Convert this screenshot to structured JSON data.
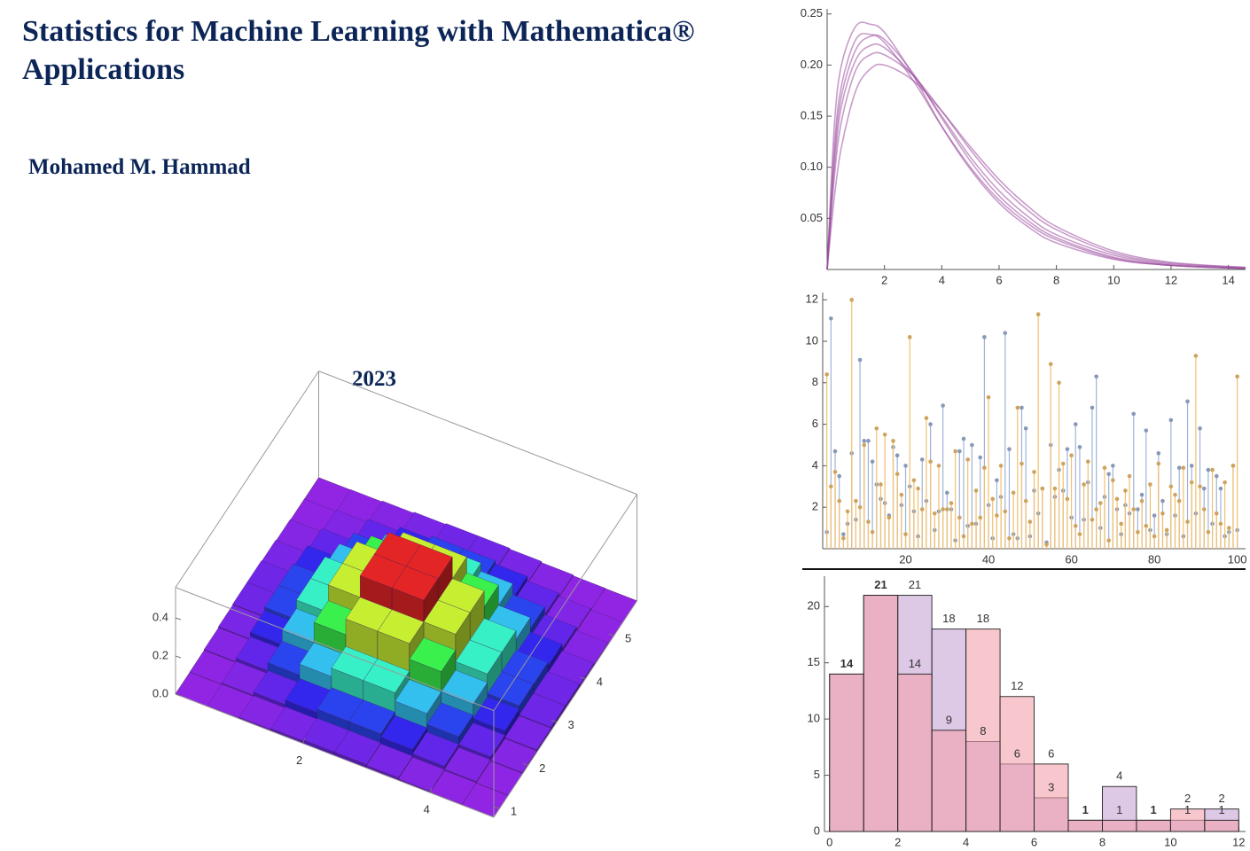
{
  "title": "Statistics for Machine Learning with Mathematica® Applications",
  "author": "Mohamed M. Hammad",
  "year": "2023",
  "chart_data": [
    {
      "type": "bar3d",
      "colormap": "Rainbow",
      "x_edges": [
        0,
        0.5,
        1,
        1.5,
        2,
        2.5,
        3,
        3.5,
        4,
        4.5,
        5
      ],
      "y_edges": [
        0.8,
        1.3,
        1.8,
        2.3,
        2.8,
        3.3,
        3.8,
        4.3,
        4.8,
        5.3,
        5.8
      ],
      "values": [
        [
          0.001,
          0.003,
          0.008,
          0.014,
          0.019,
          0.019,
          0.014,
          0.008,
          0.003,
          0.001
        ],
        [
          0.003,
          0.01,
          0.026,
          0.049,
          0.067,
          0.067,
          0.049,
          0.026,
          0.01,
          0.003
        ],
        [
          0.008,
          0.026,
          0.067,
          0.124,
          0.169,
          0.169,
          0.124,
          0.067,
          0.026,
          0.008
        ],
        [
          0.014,
          0.049,
          0.124,
          0.23,
          0.313,
          0.313,
          0.23,
          0.124,
          0.049,
          0.014
        ],
        [
          0.019,
          0.066,
          0.168,
          0.313,
          0.426,
          0.426,
          0.313,
          0.168,
          0.066,
          0.019
        ],
        [
          0.019,
          0.066,
          0.168,
          0.313,
          0.426,
          0.426,
          0.313,
          0.168,
          0.066,
          0.019
        ],
        [
          0.014,
          0.049,
          0.124,
          0.23,
          0.313,
          0.313,
          0.23,
          0.124,
          0.049,
          0.014
        ],
        [
          0.008,
          0.026,
          0.067,
          0.124,
          0.169,
          0.169,
          0.124,
          0.067,
          0.026,
          0.008
        ],
        [
          0.003,
          0.01,
          0.026,
          0.049,
          0.067,
          0.067,
          0.049,
          0.026,
          0.01,
          0.003
        ],
        [
          0.001,
          0.003,
          0.008,
          0.014,
          0.019,
          0.019,
          0.014,
          0.008,
          0.003,
          0.001
        ]
      ],
      "xlim": [
        0,
        5
      ],
      "ylim": [
        0.8,
        5.8
      ],
      "zlim": [
        0,
        0.56
      ],
      "xticks": [
        2,
        4
      ],
      "yticks": [
        1,
        2,
        3,
        4,
        5
      ],
      "zticks": [
        {
          "value": 0,
          "label": "0.0"
        },
        0.2,
        0.4
      ]
    },
    {
      "type": "line",
      "color": "#9b4a9e",
      "x": [
        0,
        0.25,
        0.5,
        1,
        1.5,
        2,
        3,
        4,
        5,
        6,
        7,
        8,
        10,
        12,
        14.6
      ],
      "series": [
        {
          "values": [
            0,
            0.14,
            0.2,
            0.238,
            0.24,
            0.232,
            0.19,
            0.14,
            0.098,
            0.065,
            0.042,
            0.026,
            0.01,
            0.004,
            0.001
          ]
        },
        {
          "values": [
            0,
            0.1,
            0.16,
            0.205,
            0.219,
            0.217,
            0.19,
            0.15,
            0.11,
            0.077,
            0.052,
            0.034,
            0.014,
            0.005,
            0.001
          ]
        },
        {
          "values": [
            0,
            0.07,
            0.12,
            0.175,
            0.196,
            0.2,
            0.185,
            0.155,
            0.12,
            0.088,
            0.062,
            0.042,
            0.018,
            0.007,
            0.002
          ]
        },
        {
          "values": [
            0,
            0.12,
            0.18,
            0.225,
            0.23,
            0.222,
            0.185,
            0.14,
            0.1,
            0.068,
            0.045,
            0.029,
            0.011,
            0.004,
            0.001
          ]
        },
        {
          "values": [
            0,
            0.09,
            0.145,
            0.195,
            0.21,
            0.21,
            0.19,
            0.155,
            0.117,
            0.084,
            0.058,
            0.039,
            0.016,
            0.006,
            0.002
          ]
        },
        {
          "values": [
            0,
            0.11,
            0.17,
            0.215,
            0.228,
            0.225,
            0.192,
            0.148,
            0.106,
            0.072,
            0.048,
            0.031,
            0.012,
            0.004,
            0.001
          ]
        }
      ],
      "xlim": [
        0,
        14.6
      ],
      "ylim": [
        0,
        0.255
      ],
      "xticks": [
        2,
        4,
        6,
        8,
        10,
        12,
        14
      ],
      "yticks": [
        0.05,
        {
          "value": 0.1,
          "label": "0.10"
        },
        0.15,
        {
          "value": 0.2,
          "label": "0.20"
        },
        0.25
      ]
    },
    {
      "type": "stem",
      "x": [
        1,
        2,
        3,
        4,
        5,
        6,
        7,
        8,
        9,
        10,
        11,
        12,
        13,
        14,
        15,
        16,
        17,
        18,
        19,
        20,
        21,
        22,
        23,
        24,
        25,
        26,
        27,
        28,
        29,
        30,
        31,
        32,
        33,
        34,
        35,
        36,
        37,
        38,
        39,
        40,
        41,
        42,
        43,
        44,
        45,
        46,
        47,
        48,
        49,
        50,
        51,
        52,
        53,
        54,
        55,
        56,
        57,
        58,
        59,
        60,
        61,
        62,
        63,
        64,
        65,
        66,
        67,
        68,
        69,
        70,
        71,
        72,
        73,
        74,
        75,
        76,
        77,
        78,
        79,
        80,
        81,
        82,
        83,
        84,
        85,
        86,
        87,
        88,
        89,
        90,
        91,
        92,
        93,
        94,
        95,
        96,
        97,
        98,
        99,
        100
      ],
      "series": [
        {
          "color": "#9fb3d8",
          "values": [
            0.8,
            11.1,
            4.7,
            3.5,
            0.7,
            1.2,
            4.6,
            1.4,
            9.1,
            5.2,
            5.2,
            4.2,
            3.1,
            2.4,
            2.2,
            1.6,
            4.9,
            4.5,
            2.1,
            4.0,
            3.0,
            1.8,
            0.6,
            4.3,
            2.3,
            6.0,
            0.9,
            1.8,
            6.9,
            2.7,
            1.9,
            0.4,
            4.7,
            5.3,
            1.1,
            5.0,
            1.2,
            4.4,
            10.2,
            2.1,
            0.5,
            3.3,
            2.5,
            10.4,
            4.8,
            0.7,
            0.5,
            6.8,
            5.8,
            0.6,
            2.8,
            1.7,
            2.9,
            0.3,
            5.0,
            2.5,
            3.8,
            2.8,
            4.8,
            1.5,
            6.0,
            4.9,
            1.4,
            3.2,
            6.8,
            8.3,
            1.0,
            2.5,
            3.6,
            4.0,
            1.9,
            0.7,
            2.1,
            1.7,
            6.5,
            1.9,
            2.6,
            5.7,
            0.9,
            1.6,
            4.6,
            2.3,
            0.7,
            6.2,
            1.6,
            3.9,
            0.6,
            7.1,
            4.0,
            1.7,
            5.8,
            2.9,
            3.8,
            1.2,
            3.5,
            2.9,
            0.6,
            0.8,
            4.0,
            0.9
          ]
        },
        {
          "color": "#f2c06e",
          "values": [
            8.4,
            3.0,
            3.7,
            2.3,
            0.5,
            1.8,
            12.0,
            2.3,
            2.0,
            5.0,
            1.3,
            0.8,
            5.8,
            3.1,
            5.5,
            1.5,
            5.2,
            3.6,
            2.6,
            0.7,
            10.2,
            3.3,
            2.9,
            1.9,
            6.3,
            4.2,
            1.7,
            4.0,
            1.9,
            1.9,
            2.2,
            4.7,
            1.5,
            0.6,
            4.3,
            1.2,
            2.8,
            1.5,
            3.9,
            7.3,
            2.4,
            1.6,
            4.0,
            1.8,
            0.5,
            2.7,
            6.8,
            4.1,
            2.3,
            1.3,
            3.7,
            11.3,
            2.9,
            0.2,
            8.9,
            2.9,
            8.0,
            4.1,
            2.4,
            4.5,
            1.1,
            0.7,
            3.1,
            4.2,
            1.4,
            1.9,
            2.2,
            3.9,
            0.4,
            3.3,
            2.4,
            1.2,
            2.8,
            3.5,
            1.9,
            0.8,
            2.3,
            1.1,
            3.1,
            0.6,
            4.1,
            1.7,
            0.9,
            3.0,
            2.6,
            2.3,
            3.9,
            1.3,
            3.2,
            9.3,
            3.0,
            1.9,
            0.8,
            3.8,
            1.7,
            1.2,
            3.2,
            1.0,
            4.0,
            8.3
          ]
        }
      ],
      "xlim": [
        0,
        102
      ],
      "ylim": [
        0,
        12.35
      ],
      "xticks": [
        20,
        40,
        60,
        80,
        100
      ],
      "yticks": [
        2,
        4,
        6,
        8,
        10,
        12
      ]
    },
    {
      "type": "histogram",
      "opacity": 0.6,
      "bins": [
        0,
        1,
        2,
        3,
        4,
        5,
        6,
        7,
        8,
        9,
        10,
        11,
        12
      ],
      "series": [
        {
          "color": "#c6a3d6",
          "values": [
            14,
            21,
            21,
            18,
            8,
            6,
            3,
            1,
            4,
            1,
            1,
            2
          ]
        },
        {
          "color": "#f1a2ab",
          "values": [
            14,
            21,
            14,
            9,
            18,
            12,
            6,
            1,
            1,
            1,
            2,
            1
          ]
        }
      ],
      "xlim": [
        -0.15,
        12.2
      ],
      "ylim": [
        0,
        22.7
      ],
      "xticks": [
        0,
        2,
        4,
        6,
        8,
        10,
        12
      ],
      "yticks": [
        0,
        5,
        10,
        15,
        20
      ]
    }
  ]
}
